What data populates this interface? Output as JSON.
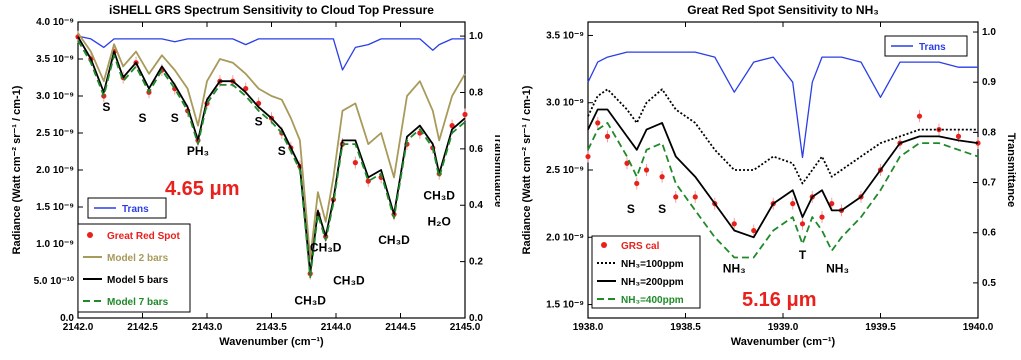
{
  "chart_data": [
    {
      "type": "line",
      "title": "iSHELL GRS Spectrum Sensitivity to Cloud Top Pressure",
      "xlabel": "Wavenumber (cm⁻¹)",
      "ylabel": "Radiance (Watt cm⁻² sr⁻¹ / cm-1)",
      "y2label": "Transmittance",
      "xlim": [
        2142.0,
        2145.0
      ],
      "ylim": [
        0,
        4e-09
      ],
      "y2lim": [
        0,
        1.05
      ],
      "x_ticks": [
        2142.0,
        2142.5,
        2143.0,
        2143.5,
        2144.0,
        2144.5,
        2145.0
      ],
      "x_tick_labels": [
        "2142.0",
        "2142.5",
        "2143.0",
        "2143.5",
        "2144.0",
        "2144.5",
        "2145.0"
      ],
      "y_ticks": [
        0,
        5e-10,
        1e-09,
        1.5e-09,
        2e-09,
        2.5e-09,
        3e-09,
        3.5e-09,
        4e-09
      ],
      "y_tick_labels": [
        "0.0",
        "5.0 10⁻¹⁰",
        "1.0 10⁻⁹",
        "1.5 10⁻⁹",
        "2.0 10⁻⁹",
        "2.5 10⁻⁹",
        "3.0 10⁻⁹",
        "3.5 10⁻⁹",
        "4.0 10⁻⁹"
      ],
      "y2_ticks": [
        0,
        0.2,
        0.4,
        0.6,
        0.8,
        1.0
      ],
      "y2_tick_labels": [
        "0.0",
        "0.2",
        "0.4",
        "0.6",
        "0.8",
        "1.0"
      ],
      "x": [
        2142.0,
        2142.1,
        2142.2,
        2142.28,
        2142.35,
        2142.45,
        2142.55,
        2142.65,
        2142.75,
        2142.85,
        2142.93,
        2143.0,
        2143.1,
        2143.2,
        2143.3,
        2143.4,
        2143.5,
        2143.58,
        2143.65,
        2143.72,
        2143.8,
        2143.86,
        2143.92,
        2143.98,
        2144.05,
        2144.15,
        2144.25,
        2144.35,
        2144.45,
        2144.55,
        2144.65,
        2144.75,
        2144.8,
        2144.9,
        2145.0
      ],
      "series": [
        {
          "name": "Trans",
          "axis": "right",
          "color": "#2a3ee8",
          "style": "solid",
          "values": [
            1.0,
            0.99,
            0.96,
            0.99,
            0.99,
            0.99,
            0.99,
            0.99,
            0.98,
            0.99,
            0.99,
            0.99,
            0.99,
            0.99,
            0.97,
            0.99,
            0.99,
            0.99,
            0.99,
            0.99,
            0.99,
            0.99,
            0.99,
            0.99,
            0.88,
            0.96,
            0.97,
            0.99,
            0.99,
            0.99,
            0.99,
            0.95,
            0.97,
            0.99,
            0.99
          ]
        },
        {
          "name": "Great Red Spot",
          "axis": "left",
          "color": "#e8211d",
          "style": "points",
          "values": [
            3.8e-09,
            3.5e-09,
            3e-09,
            3.6e-09,
            3.25e-09,
            3.45e-09,
            3.05e-09,
            3.35e-09,
            3.1e-09,
            2.8e-09,
            2.4e-09,
            2.9e-09,
            3.2e-09,
            3.2e-09,
            3.1e-09,
            2.9e-09,
            2.7e-09,
            2.5e-09,
            2.3e-09,
            2.05e-09,
            6e-10,
            1.4e-09,
            1.1e-09,
            1.6e-09,
            2.35e-09,
            2.1e-09,
            1.85e-09,
            1.9e-09,
            1.4e-09,
            2.35e-09,
            2.5e-09,
            2.3e-09,
            1.95e-09,
            2.6e-09,
            2.75e-09
          ]
        },
        {
          "name": "Model 2 bars",
          "axis": "left",
          "color": "#a89a5a",
          "style": "solid",
          "values": [
            3.85e-09,
            3.6e-09,
            3.2e-09,
            3.7e-09,
            3.4e-09,
            3.6e-09,
            3.3e-09,
            3.55e-09,
            3.35e-09,
            3.1e-09,
            2.6e-09,
            3.2e-09,
            3.5e-09,
            3.45e-09,
            3.3e-09,
            3.1e-09,
            3e-09,
            2.95e-09,
            2.7e-09,
            2.4e-09,
            8e-10,
            1.7e-09,
            1.3e-09,
            1.9e-09,
            2.8e-09,
            2.9e-09,
            2.35e-09,
            2.5e-09,
            1.9e-09,
            3e-09,
            3.2e-09,
            2.8e-09,
            2.4e-09,
            3e-09,
            3.3e-09
          ]
        },
        {
          "name": "Model 5 bars",
          "axis": "left",
          "color": "#000000",
          "style": "solid",
          "values": [
            3.8e-09,
            3.5e-09,
            3.05e-09,
            3.6e-09,
            3.25e-09,
            3.45e-09,
            3.1e-09,
            3.4e-09,
            3.15e-09,
            2.85e-09,
            2.4e-09,
            2.95e-09,
            3.2e-09,
            3.2e-09,
            3.05e-09,
            2.85e-09,
            2.7e-09,
            2.55e-09,
            2.3e-09,
            2.05e-09,
            6e-10,
            1.45e-09,
            1.1e-09,
            1.6e-09,
            2.4e-09,
            2.4e-09,
            1.9e-09,
            2e-09,
            1.4e-09,
            2.45e-09,
            2.6e-09,
            2.35e-09,
            1.95e-09,
            2.55e-09,
            2.7e-09
          ]
        },
        {
          "name": "Model 7 bars",
          "axis": "left",
          "color": "#1f8a2a",
          "style": "dashed",
          "values": [
            3.75e-09,
            3.45e-09,
            3e-09,
            3.55e-09,
            3.2e-09,
            3.4e-09,
            3.05e-09,
            3.35e-09,
            3.1e-09,
            2.8e-09,
            2.35e-09,
            2.9e-09,
            3.15e-09,
            3.15e-09,
            3e-09,
            2.8e-09,
            2.65e-09,
            2.5e-09,
            2.25e-09,
            2e-09,
            5.5e-10,
            1.4e-09,
            1.05e-09,
            1.55e-09,
            2.35e-09,
            2.35e-09,
            1.85e-09,
            1.95e-09,
            1.35e-09,
            2.4e-09,
            2.55e-09,
            2.3e-09,
            1.9e-09,
            2.5e-09,
            2.65e-09
          ]
        }
      ],
      "annotations": [
        {
          "text": "S",
          "x": 2142.22,
          "y": 2.8e-09
        },
        {
          "text": "S",
          "x": 2142.5,
          "y": 2.65e-09
        },
        {
          "text": "S",
          "x": 2142.75,
          "y": 2.65e-09
        },
        {
          "text": "PH₃",
          "x": 2142.93,
          "y": 2.2e-09
        },
        {
          "text": "S",
          "x": 2143.4,
          "y": 2.6e-09
        },
        {
          "text": "S",
          "x": 2143.58,
          "y": 2.2e-09
        },
        {
          "text": "CH₃D",
          "x": 2143.8,
          "y": 1.8e-10
        },
        {
          "text": "CH₃D",
          "x": 2143.92,
          "y": 9e-10
        },
        {
          "text": "CH₃D",
          "x": 2144.1,
          "y": 4.5e-10
        },
        {
          "text": "CH₃D",
          "x": 2144.45,
          "y": 1e-09
        },
        {
          "text": "CH₃D",
          "x": 2144.8,
          "y": 1.6e-09
        },
        {
          "text": "H₂O",
          "x": 2144.8,
          "y": 1.25e-09
        }
      ],
      "big_label": "4.65 μm",
      "legend_trans": "Trans",
      "legend_main": [
        "Great Red Spot",
        "Model 2 bars",
        "Model 5 bars",
        "Model 7 bars"
      ],
      "grid": false
    },
    {
      "type": "line",
      "title": "Great Red Spot Sensitivity to NH₃",
      "xlabel": "Wavenumber (cm⁻¹)",
      "ylabel": "Radiance (Watt cm⁻² sr⁻¹ / cm-1)",
      "y2label": "Transmittance",
      "xlim": [
        1938.0,
        1940.0
      ],
      "ylim": [
        1.4e-09,
        3.6e-09
      ],
      "y2lim": [
        0.43,
        1.02
      ],
      "x_ticks": [
        1938.0,
        1938.5,
        1939.0,
        1939.5,
        1940.0
      ],
      "x_tick_labels": [
        "1938.0",
        "1938.5",
        "1939.0",
        "1939.5",
        "1940.0"
      ],
      "y_ticks": [
        1.5e-09,
        2e-09,
        2.5e-09,
        3e-09,
        3.5e-09
      ],
      "y_tick_labels": [
        "1.5 10⁻⁹",
        "2.0 10⁻⁹",
        "2.5 10⁻⁹",
        "3.0 10⁻⁹",
        "3.5 10⁻⁹"
      ],
      "y2_ticks": [
        0.5,
        0.6,
        0.7,
        0.8,
        0.9,
        1.0
      ],
      "y2_tick_labels": [
        "0.5",
        "0.6",
        "0.7",
        "0.8",
        "0.9",
        "1.0"
      ],
      "x": [
        1938.0,
        1938.05,
        1938.1,
        1938.2,
        1938.25,
        1938.3,
        1938.38,
        1938.45,
        1938.55,
        1938.65,
        1938.75,
        1938.85,
        1938.95,
        1939.05,
        1939.1,
        1939.15,
        1939.2,
        1939.25,
        1939.3,
        1939.4,
        1939.5,
        1939.6,
        1939.7,
        1939.8,
        1939.9,
        1940.0
      ],
      "series": [
        {
          "name": "Trans",
          "axis": "right",
          "color": "#2a3ee8",
          "style": "solid",
          "values": [
            0.9,
            0.94,
            0.95,
            0.96,
            0.96,
            0.96,
            0.96,
            0.96,
            0.96,
            0.95,
            0.88,
            0.94,
            0.95,
            0.9,
            0.75,
            0.9,
            0.95,
            0.95,
            0.95,
            0.94,
            0.87,
            0.94,
            0.94,
            0.94,
            0.93,
            0.93
          ]
        },
        {
          "name": "GRS cal",
          "axis": "left",
          "color": "#e8211d",
          "style": "points",
          "values": [
            2.6e-09,
            2.85e-09,
            2.75e-09,
            2.55e-09,
            2.4e-09,
            2.5e-09,
            2.45e-09,
            2.3e-09,
            2.3e-09,
            2.25e-09,
            2.1e-09,
            2.05e-09,
            2.25e-09,
            2.25e-09,
            2.1e-09,
            2.3e-09,
            2.15e-09,
            2.25e-09,
            2.2e-09,
            2.3e-09,
            2.5e-09,
            2.7e-09,
            2.9e-09,
            2.8e-09,
            2.75e-09,
            2.7e-09
          ]
        },
        {
          "name": "NH₃=100ppm",
          "axis": "left",
          "color": "#000000",
          "style": "dotted",
          "values": [
            2.9e-09,
            3.05e-09,
            3.1e-09,
            2.95e-09,
            2.85e-09,
            3e-09,
            3.1e-09,
            2.95e-09,
            2.85e-09,
            2.65e-09,
            2.5e-09,
            2.5e-09,
            2.6e-09,
            2.55e-09,
            2.4e-09,
            2.5e-09,
            2.6e-09,
            2.45e-09,
            2.5e-09,
            2.6e-09,
            2.7e-09,
            2.75e-09,
            2.8e-09,
            2.8e-09,
            2.8e-09,
            2.8e-09
          ]
        },
        {
          "name": "NH₃=200ppm",
          "axis": "left",
          "color": "#000000",
          "style": "solid",
          "values": [
            2.8e-09,
            2.95e-09,
            2.95e-09,
            2.75e-09,
            2.65e-09,
            2.8e-09,
            2.85e-09,
            2.6e-09,
            2.45e-09,
            2.25e-09,
            2.05e-09,
            2e-09,
            2.25e-09,
            2.35e-09,
            2.15e-09,
            2.3e-09,
            2.35e-09,
            2.2e-09,
            2.2e-09,
            2.3e-09,
            2.5e-09,
            2.7e-09,
            2.75e-09,
            2.75e-09,
            2.72e-09,
            2.7e-09
          ]
        },
        {
          "name": "NH₃=400ppm",
          "axis": "left",
          "color": "#1f8a2a",
          "style": "dashed",
          "values": [
            2.65e-09,
            2.8e-09,
            2.85e-09,
            2.6e-09,
            2.45e-09,
            2.65e-09,
            2.7e-09,
            2.4e-09,
            2.2e-09,
            2e-09,
            1.85e-09,
            1.85e-09,
            2.05e-09,
            2.15e-09,
            1.95e-09,
            2.15e-09,
            2.05e-09,
            1.9e-09,
            2e-09,
            2.15e-09,
            2.35e-09,
            2.6e-09,
            2.7e-09,
            2.7e-09,
            2.65e-09,
            2.6e-09
          ]
        }
      ],
      "annotations": [
        {
          "text": "S",
          "x": 1938.22,
          "y": 2.18e-09
        },
        {
          "text": "S",
          "x": 1938.38,
          "y": 2.18e-09
        },
        {
          "text": "NH₃",
          "x": 1938.75,
          "y": 1.74e-09
        },
        {
          "text": "T",
          "x": 1939.1,
          "y": 1.84e-09
        },
        {
          "text": "NH₃",
          "x": 1939.28,
          "y": 1.74e-09
        }
      ],
      "big_label": "5.16 μm",
      "legend_trans": "Trans",
      "legend_main": [
        "GRS cal",
        "NH₃=100ppm",
        "NH₃=200ppm",
        "NH₃=400ppm"
      ],
      "grid": false
    }
  ]
}
